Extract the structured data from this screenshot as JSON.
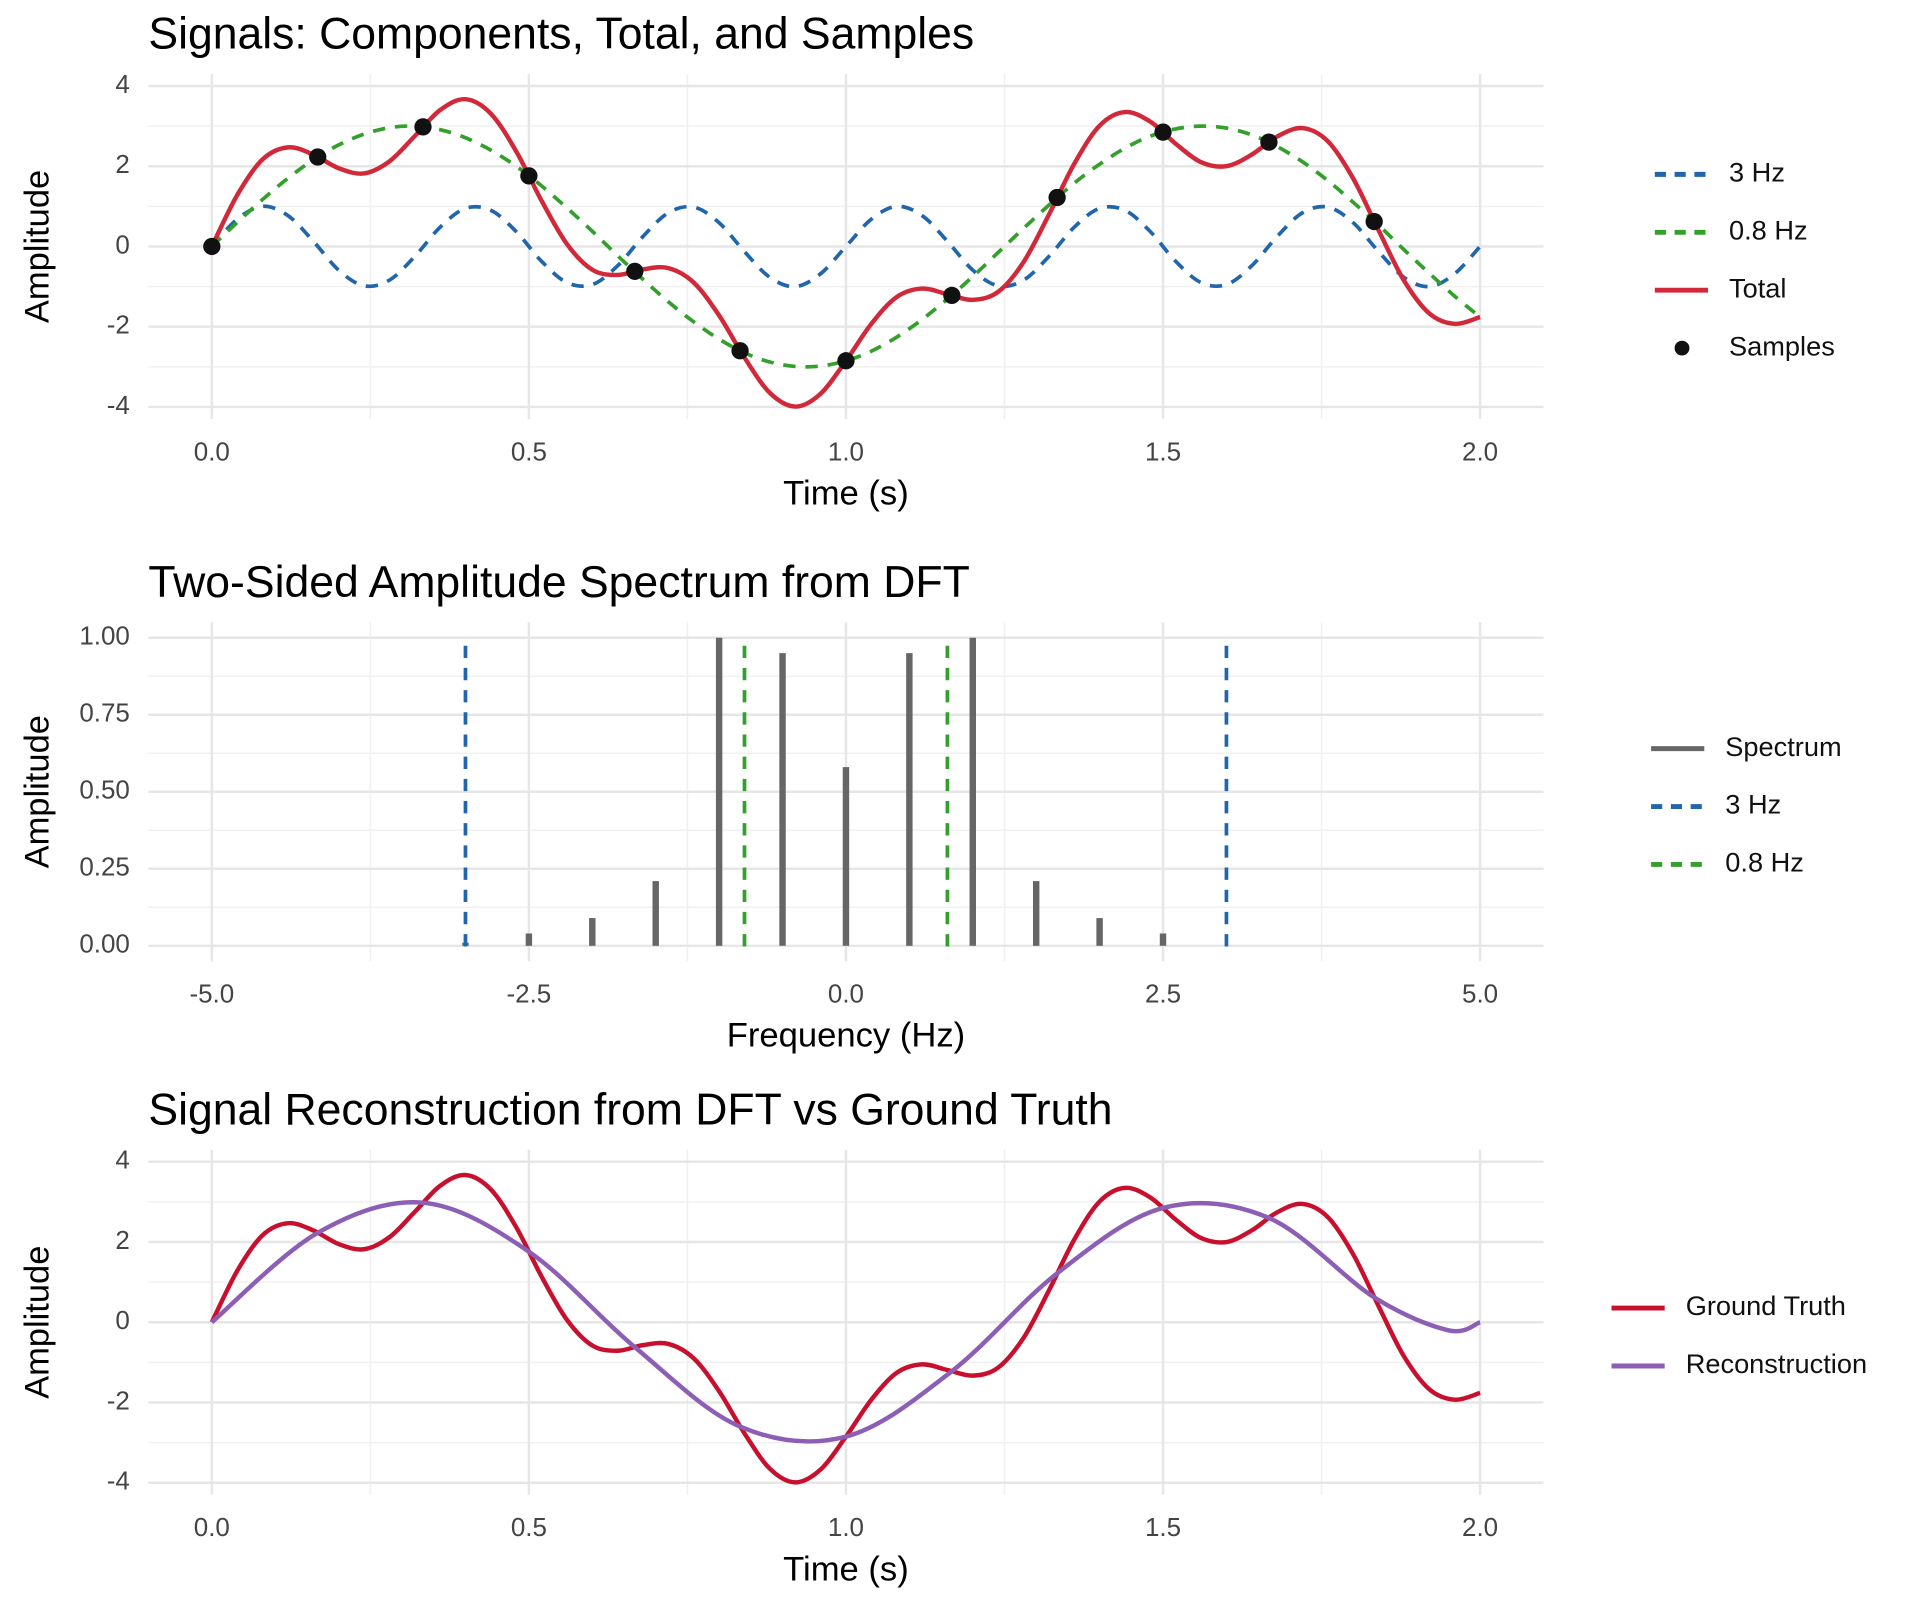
{
  "chart_data": [
    {
      "type": "line",
      "title": "Signals: Components, Total, and Samples",
      "xlabel": "Time (s)",
      "ylabel": "Amplitude",
      "xlim": [
        -0.1,
        2.1
      ],
      "ylim": [
        -4.3,
        4.3
      ],
      "xticks": [
        {
          "value": 0,
          "label": "0.0"
        },
        {
          "value": 0.5,
          "label": "0.5"
        },
        {
          "value": 1,
          "label": "1.0"
        },
        {
          "value": 1.5,
          "label": "1.5"
        },
        {
          "value": 2,
          "label": "2.0"
        }
      ],
      "yticks": [
        -4,
        -2,
        0,
        2,
        4
      ],
      "x_minor_ticks": [
        0.25,
        0.75,
        1.25,
        1.75
      ],
      "y_minor_ticks": [
        -3,
        -1,
        1,
        3
      ],
      "grid": true,
      "x": [
        0,
        0.04,
        0.08,
        0.12,
        0.16,
        0.2,
        0.24,
        0.28,
        0.32,
        0.36,
        0.4,
        0.44,
        0.48,
        0.52,
        0.56,
        0.6,
        0.64,
        0.68,
        0.72,
        0.76,
        0.8,
        0.84,
        0.88,
        0.92,
        0.96,
        1,
        1.04,
        1.08,
        1.12,
        1.16,
        1.2,
        1.24,
        1.28,
        1.32,
        1.36,
        1.4,
        1.44,
        1.48,
        1.52,
        1.56,
        1.6,
        1.64,
        1.68,
        1.72,
        1.76,
        1.8,
        1.84,
        1.88,
        1.92,
        1.96,
        2
      ],
      "series": [
        {
          "name": "3 Hz",
          "color": "#2166ac",
          "dash": true,
          "geom": "line",
          "values": [
            0,
            0.68,
            1,
            0.77,
            0.13,
            -0.59,
            -0.98,
            -0.84,
            -0.25,
            0.48,
            0.95,
            0.9,
            0.37,
            -0.37,
            -0.9,
            -0.95,
            -0.48,
            0.25,
            0.84,
            0.98,
            0.59,
            -0.13,
            -0.77,
            -1,
            -0.68,
            0,
            0.68,
            1,
            0.77,
            0.13,
            -0.59,
            -0.98,
            -0.84,
            -0.25,
            0.48,
            0.95,
            0.9,
            0.37,
            -0.37,
            -0.9,
            -0.95,
            -0.48,
            0.25,
            0.84,
            0.98,
            0.59,
            -0.13,
            -0.77,
            -1,
            -0.68,
            0
          ]
        },
        {
          "name": "0.8 Hz",
          "color": "#33a02c",
          "dash": true,
          "geom": "line",
          "values": [
            0,
            0.6,
            1.17,
            1.7,
            2.16,
            2.53,
            2.8,
            2.96,
            3,
            2.91,
            2.71,
            2.4,
            2,
            1.51,
            0.96,
            0.38,
            -0.23,
            -0.82,
            -1.38,
            -1.88,
            -2.31,
            -2.65,
            -2.88,
            -2.99,
            -2.98,
            -2.85,
            -2.61,
            -2.26,
            -1.82,
            -1.31,
            -0.75,
            -0.15,
            0.45,
            1.03,
            1.58,
            2.05,
            2.45,
            2.75,
            2.93,
            3,
            2.95,
            2.78,
            2.49,
            2.11,
            1.64,
            1.1,
            0.53,
            -0.08,
            -0.67,
            -1.24,
            -1.76
          ]
        },
        {
          "name": "Total",
          "color": "#d1293a",
          "dash": false,
          "geom": "line",
          "values": [
            0,
            1.28,
            2.17,
            2.47,
            2.29,
            1.95,
            1.82,
            2.12,
            2.75,
            3.4,
            3.67,
            3.31,
            2.37,
            1.14,
            0.06,
            -0.58,
            -0.71,
            -0.57,
            -0.54,
            -0.9,
            -1.72,
            -2.77,
            -3.65,
            -3.99,
            -3.67,
            -2.85,
            -1.93,
            -1.26,
            -1.05,
            -1.19,
            -1.33,
            -1.13,
            -0.39,
            0.79,
            2.06,
            3.01,
            3.35,
            3.11,
            2.56,
            2.1,
            2,
            2.29,
            2.74,
            2.95,
            2.62,
            1.69,
            0.4,
            -0.85,
            -1.67,
            -1.93,
            -1.76
          ]
        },
        {
          "name": "Samples",
          "color": "#111111",
          "geom": "point",
          "x": [
            0,
            0.167,
            0.333,
            0.5,
            0.667,
            0.833,
            1,
            1.167,
            1.333,
            1.5,
            1.667,
            1.833
          ],
          "values": [
            0,
            2.23,
            2.98,
            1.76,
            -0.62,
            -2.6,
            -2.85,
            -1.22,
            1.22,
            2.85,
            2.6,
            0.62
          ]
        }
      ]
    },
    {
      "type": "bar",
      "title": "Two-Sided Amplitude Spectrum from DFT",
      "xlabel": "Frequency (Hz)",
      "ylabel": "Amplitude",
      "xlim": [
        -5.5,
        5.5
      ],
      "ylim": [
        -0.05,
        1.05
      ],
      "xticks": [
        {
          "value": -5,
          "label": "-5.0"
        },
        {
          "value": -2.5,
          "label": "-2.5"
        },
        {
          "value": 0,
          "label": "0.0"
        },
        {
          "value": 2.5,
          "label": "2.5"
        },
        {
          "value": 5,
          "label": "5.0"
        }
      ],
      "yticks": [
        {
          "value": 0,
          "label": "0.00"
        },
        {
          "value": 0.25,
          "label": "0.25"
        },
        {
          "value": 0.5,
          "label": "0.50"
        },
        {
          "value": 0.75,
          "label": "0.75"
        },
        {
          "value": 1,
          "label": "1.00"
        }
      ],
      "x_minor_ticks": [
        -3.75,
        -1.25,
        1.25,
        3.75
      ],
      "y_minor_ticks": [
        0.125,
        0.375,
        0.625,
        0.875
      ],
      "grid": true,
      "series": [
        {
          "name": "Spectrum",
          "color": "#666666",
          "geom": "bar",
          "x": [
            -3,
            -2.5,
            -2,
            -1.5,
            -1,
            -0.5,
            0,
            0.5,
            1,
            1.5,
            2,
            2.5
          ],
          "values": [
            0.01,
            0.04,
            0.09,
            0.21,
            1,
            0.95,
            0.58,
            0.95,
            1,
            0.21,
            0.09,
            0.04
          ]
        },
        {
          "name": "3 Hz",
          "color": "#2166ac",
          "dash": true,
          "geom": "vline",
          "x": [
            -3,
            3
          ]
        },
        {
          "name": "0.8 Hz",
          "color": "#33a02c",
          "dash": true,
          "geom": "vline",
          "x": [
            -0.8,
            0.8
          ]
        }
      ]
    },
    {
      "type": "line",
      "title": "Signal Reconstruction from DFT vs Ground Truth",
      "xlabel": "Time (s)",
      "ylabel": "Amplitude",
      "xlim": [
        -0.1,
        2.1
      ],
      "ylim": [
        -4.3,
        4.3
      ],
      "xticks": [
        {
          "value": 0,
          "label": "0.0"
        },
        {
          "value": 0.5,
          "label": "0.5"
        },
        {
          "value": 1,
          "label": "1.0"
        },
        {
          "value": 1.5,
          "label": "1.5"
        },
        {
          "value": 2,
          "label": "2.0"
        }
      ],
      "yticks": [
        -4,
        -2,
        0,
        2,
        4
      ],
      "x_minor_ticks": [
        0.25,
        0.75,
        1.25,
        1.75
      ],
      "y_minor_ticks": [
        -3,
        -1,
        1,
        3
      ],
      "grid": true,
      "x": [
        0,
        0.04,
        0.08,
        0.12,
        0.16,
        0.2,
        0.24,
        0.28,
        0.32,
        0.36,
        0.4,
        0.44,
        0.48,
        0.52,
        0.56,
        0.6,
        0.64,
        0.68,
        0.72,
        0.76,
        0.8,
        0.84,
        0.88,
        0.92,
        0.96,
        1,
        1.04,
        1.08,
        1.12,
        1.16,
        1.2,
        1.24,
        1.28,
        1.32,
        1.36,
        1.4,
        1.44,
        1.48,
        1.52,
        1.56,
        1.6,
        1.64,
        1.68,
        1.72,
        1.76,
        1.8,
        1.84,
        1.88,
        1.92,
        1.96,
        2
      ],
      "series": [
        {
          "name": "Ground Truth",
          "color": "#c8102e",
          "dash": false,
          "geom": "line",
          "values": [
            0,
            1.28,
            2.17,
            2.47,
            2.29,
            1.95,
            1.82,
            2.12,
            2.75,
            3.4,
            3.67,
            3.31,
            2.37,
            1.14,
            0.06,
            -0.58,
            -0.71,
            -0.57,
            -0.54,
            -0.9,
            -1.72,
            -2.77,
            -3.65,
            -3.99,
            -3.67,
            -2.85,
            -1.93,
            -1.26,
            -1.05,
            -1.19,
            -1.33,
            -1.13,
            -0.39,
            0.79,
            2.06,
            3.01,
            3.35,
            3.11,
            2.56,
            2.1,
            2,
            2.29,
            2.74,
            2.95,
            2.62,
            1.69,
            0.4,
            -0.85,
            -1.67,
            -1.93,
            -1.76
          ]
        },
        {
          "name": "Reconstruction",
          "color": "#8c5fb5",
          "dash": false,
          "geom": "line",
          "x": [
            0,
            0.167,
            0.333,
            0.5,
            0.667,
            0.833,
            1,
            1.167,
            1.333,
            1.5,
            1.667,
            1.833,
            1.95,
            2
          ],
          "values": [
            0,
            2.23,
            2.98,
            1.76,
            -0.62,
            -2.6,
            -2.85,
            -1.22,
            1.22,
            2.85,
            2.6,
            0.62,
            -0.2,
            0
          ]
        }
      ]
    }
  ]
}
